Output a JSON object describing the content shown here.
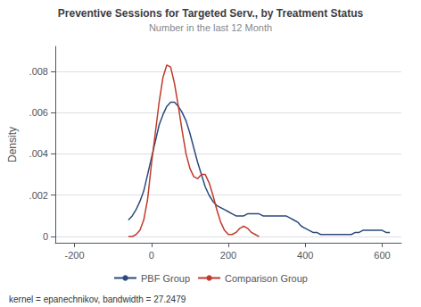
{
  "chart_data": {
    "type": "line",
    "title": "Preventive Sessions for Targeted Serv., by Treatment Status",
    "subtitle": "Number in the last 12 Month",
    "ylabel": "Density",
    "footnote": "kernel = epanechnikov, bandwidth = 27.2479",
    "xlim": [
      -250,
      650
    ],
    "xticks": [
      -200,
      0,
      200,
      400,
      600
    ],
    "ylim": [
      -0.0003,
      0.0092
    ],
    "yticks": [
      0,
      {
        "value": 0.002,
        "label": ".002"
      },
      {
        "value": 0.004,
        "label": ".004"
      },
      {
        "value": 0.006,
        "label": ".006"
      },
      {
        "value": 0.008,
        "label": ".008"
      }
    ],
    "grid": "y",
    "legend": "bottom",
    "series": [
      {
        "name": "PBF Group",
        "color": "#2b4a7a",
        "x": [
          -60,
          -50,
          -40,
          -30,
          -20,
          -10,
          0,
          10,
          20,
          30,
          40,
          50,
          60,
          70,
          80,
          90,
          100,
          110,
          120,
          130,
          140,
          150,
          160,
          170,
          180,
          190,
          200,
          210,
          220,
          230,
          240,
          250,
          260,
          270,
          280,
          290,
          300,
          310,
          320,
          330,
          340,
          350,
          360,
          370,
          380,
          390,
          400,
          410,
          420,
          430,
          440,
          450,
          460,
          470,
          480,
          490,
          500,
          510,
          520,
          530,
          540,
          550,
          560,
          570,
          580,
          590,
          600,
          610,
          620
        ],
        "values": [
          0.0008,
          0.001,
          0.0013,
          0.0017,
          0.0022,
          0.003,
          0.0038,
          0.0046,
          0.0054,
          0.0059,
          0.0063,
          0.0065,
          0.0065,
          0.0063,
          0.006,
          0.0056,
          0.005,
          0.0043,
          0.0036,
          0.003,
          0.0024,
          0.002,
          0.0017,
          0.0015,
          0.0014,
          0.0013,
          0.0012,
          0.0011,
          0.001,
          0.001,
          0.001,
          0.0011,
          0.0011,
          0.0011,
          0.0011,
          0.001,
          0.001,
          0.001,
          0.001,
          0.001,
          0.001,
          0.001,
          0.0009,
          0.0008,
          0.0007,
          0.0005,
          0.0004,
          0.0003,
          0.0002,
          0.0002,
          0.0001,
          0.0001,
          0.0001,
          0.0001,
          0.0001,
          0.0001,
          0.0001,
          0.0001,
          0.0001,
          0.0002,
          0.0002,
          0.0003,
          0.0003,
          0.0003,
          0.0003,
          0.0003,
          0.0003,
          0.0002,
          0.0002
        ]
      },
      {
        "name": "Comparison Group",
        "color": "#c0392b",
        "x": [
          -60,
          -50,
          -40,
          -30,
          -20,
          -10,
          0,
          10,
          20,
          30,
          40,
          50,
          60,
          70,
          80,
          90,
          100,
          110,
          120,
          130,
          140,
          150,
          160,
          170,
          180,
          190,
          200,
          210,
          220,
          230,
          240,
          250,
          260,
          270,
          280
        ],
        "values": [
          0.0,
          0.0,
          0.0001,
          0.0003,
          0.0008,
          0.0018,
          0.0035,
          0.005,
          0.0065,
          0.0077,
          0.0083,
          0.0082,
          0.0074,
          0.0063,
          0.0051,
          0.004,
          0.0033,
          0.0029,
          0.0028,
          0.003,
          0.003,
          0.0026,
          0.002,
          0.0013,
          0.0007,
          0.0003,
          0.0001,
          0.0001,
          0.0002,
          0.0004,
          0.0005,
          0.0004,
          0.0002,
          0.0001,
          0.0
        ]
      }
    ]
  }
}
